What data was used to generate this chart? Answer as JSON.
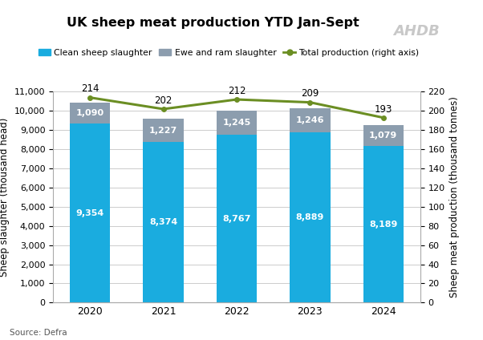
{
  "title": "UK sheep meat production YTD Jan-Sept",
  "years": [
    2020,
    2021,
    2022,
    2023,
    2024
  ],
  "clean_sheep": [
    9354,
    8374,
    8767,
    8889,
    8189
  ],
  "ewe_ram": [
    1090,
    1227,
    1245,
    1246,
    1079
  ],
  "total_production": [
    214,
    202,
    212,
    209,
    193
  ],
  "bar_color_blue": "#1AACDF",
  "bar_color_gray": "#8C9DAE",
  "line_color": "#6B8E23",
  "ylabel_left": "Sheep slaughter (thousand head)",
  "ylabel_right": "Sheep meat production (thousand tonnes)",
  "source": "Source: Defra",
  "ylim_left": [
    0,
    11000
  ],
  "ylim_right": [
    0,
    220
  ],
  "yticks_left": [
    0,
    1000,
    2000,
    3000,
    4000,
    5000,
    6000,
    7000,
    8000,
    9000,
    10000,
    11000
  ],
  "yticks_right": [
    0,
    20,
    40,
    60,
    80,
    100,
    120,
    140,
    160,
    180,
    200,
    220
  ],
  "legend_labels": [
    "Clean sheep slaughter",
    "Ewe and ram slaughter",
    "Total production (right axis)"
  ],
  "background_color": "#FFFFFF",
  "grid_color": "#CCCCCC",
  "ahdb_text": "AHDB",
  "ahdb_color": "#C8C8C8"
}
